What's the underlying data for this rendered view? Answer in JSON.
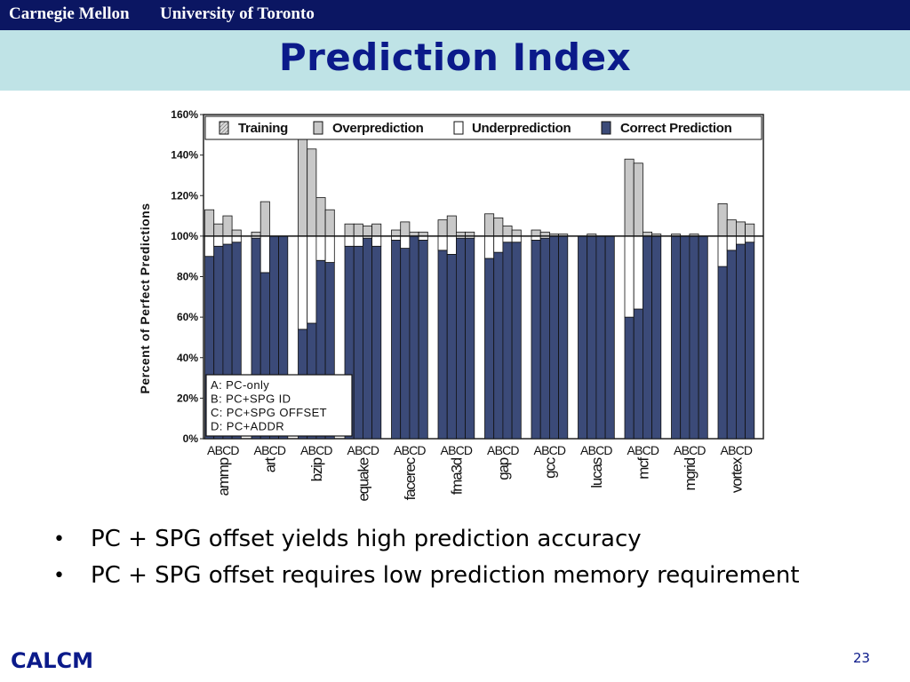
{
  "header": {
    "left_institution": "Carnegie Mellon",
    "right_institution": "University of Toronto",
    "title": "Prediction Index"
  },
  "chart_data": {
    "type": "bar",
    "stacked": true,
    "ylabel": "Percent of Perfect Predictions",
    "ylim": [
      0,
      160
    ],
    "yticks": [
      "0%",
      "20%",
      "40%",
      "60%",
      "80%",
      "100%",
      "120%",
      "140%",
      "160%"
    ],
    "reference_line": 100,
    "legend": [
      "Training",
      "Overprediction",
      "Underprediction",
      "Correct Prediction"
    ],
    "legend_position": "top",
    "config_labels": [
      "A",
      "B",
      "C",
      "D"
    ],
    "config_group_label": "ABCD",
    "config_legend": [
      "A: PC-only",
      "B: PC+SPG ID",
      "C: PC+SPG OFFSET",
      "D: PC+ADDR"
    ],
    "colors": {
      "correct": "#3b4a78",
      "underprediction": "#ffffff",
      "overprediction": "#c8c8c8",
      "training": "#d9d9d9",
      "axis": "#222222"
    },
    "benchmarks": [
      {
        "name": "ammp",
        "correct": [
          90,
          95,
          96,
          97
        ],
        "over": [
          13,
          6,
          10,
          3
        ]
      },
      {
        "name": "art",
        "correct": [
          99,
          82,
          100,
          100
        ],
        "over": [
          2,
          17,
          0,
          0
        ]
      },
      {
        "name": "bzip",
        "correct": [
          54,
          57,
          88,
          87
        ],
        "over": [
          48,
          43,
          19,
          13
        ]
      },
      {
        "name": "equake",
        "correct": [
          95,
          95,
          99,
          95
        ],
        "over": [
          6,
          6,
          5,
          6
        ]
      },
      {
        "name": "facerec",
        "correct": [
          98,
          94,
          100,
          98
        ],
        "over": [
          3,
          7,
          2,
          2
        ]
      },
      {
        "name": "fma3d",
        "correct": [
          93,
          91,
          99,
          99
        ],
        "over": [
          8,
          10,
          2,
          2
        ]
      },
      {
        "name": "gap",
        "correct": [
          89,
          92,
          97,
          97
        ],
        "over": [
          11,
          9,
          5,
          3
        ]
      },
      {
        "name": "gcc",
        "correct": [
          98,
          99,
          100,
          100
        ],
        "over": [
          3,
          2,
          1,
          1
        ]
      },
      {
        "name": "lucas",
        "correct": [
          100,
          100,
          100,
          100
        ],
        "over": [
          0,
          1,
          0,
          0
        ]
      },
      {
        "name": "mcf",
        "correct": [
          60,
          64,
          100,
          100
        ],
        "over": [
          38,
          36,
          2,
          1
        ]
      },
      {
        "name": "mgrid",
        "correct": [
          100,
          100,
          100,
          100
        ],
        "over": [
          1,
          0,
          1,
          0
        ]
      },
      {
        "name": "vortex",
        "correct": [
          85,
          93,
          96,
          97
        ],
        "over": [
          16,
          8,
          7,
          6
        ]
      }
    ]
  },
  "bullets": [
    "PC + SPG offset yields high prediction accuracy",
    "PC + SPG offset requires low prediction memory requirement"
  ],
  "bullet_symbol": "•",
  "footer": {
    "left": "CALCM",
    "page_number": "23"
  }
}
